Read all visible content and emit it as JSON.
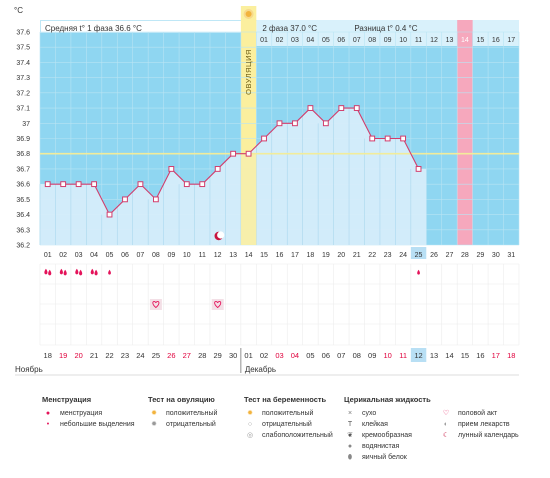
{
  "chart_data": {
    "type": "line",
    "ylabel": "°C",
    "ylim": [
      36.2,
      37.6
    ],
    "yticks": [
      "37.6",
      "37.5",
      "37.4",
      "37.3",
      "37.2",
      "37.1",
      "37",
      "36.9",
      "36.8",
      "36.7",
      "36.6",
      "36.5",
      "36.4",
      "36.3",
      "36.2"
    ],
    "header": {
      "phase1": "Средняя t° 1 фаза 36.6 °C",
      "phase2": "2 фаза 37.0 °C",
      "diff": "Разница t° 0.4 °C"
    },
    "ovulation_label": "ОВУЛЯЦИЯ",
    "cycle_days": [
      "01",
      "02",
      "03",
      "04",
      "05",
      "06",
      "07",
      "08",
      "09",
      "10",
      "11",
      "12",
      "13",
      "14",
      "15",
      "16",
      "17",
      "18",
      "19",
      "20",
      "21",
      "22",
      "23",
      "24",
      "25",
      "26",
      "27",
      "28",
      "29",
      "30",
      "31"
    ],
    "phase2_days": [
      "01",
      "02",
      "03",
      "04",
      "05",
      "06",
      "07",
      "08",
      "09",
      "10",
      "11",
      "12",
      "13",
      "14",
      "15",
      "16",
      "17"
    ],
    "series": [
      {
        "values": [
          36.6,
          36.6,
          36.6,
          36.6,
          36.4,
          36.5,
          36.6,
          36.5,
          36.7,
          36.6,
          36.6,
          36.7,
          36.8,
          36.8,
          36.9,
          37.0,
          37.0,
          37.1,
          37.0,
          37.1,
          37.1,
          36.9,
          36.9,
          36.9,
          36.7,
          null,
          null,
          null,
          null,
          null,
          null
        ]
      }
    ],
    "coverline": 36.8,
    "ovulation_day": "14",
    "expected_period_day": "28",
    "today_day": "25",
    "dates": [
      "18",
      "19",
      "20",
      "21",
      "22",
      "23",
      "24",
      "25",
      "26",
      "27",
      "28",
      "29",
      "30",
      "01",
      "02",
      "03",
      "04",
      "05",
      "06",
      "07",
      "08",
      "09",
      "10",
      "11",
      "12",
      "13",
      "14",
      "15",
      "16",
      "17",
      "18"
    ],
    "weekend_indices": [
      1,
      2,
      8,
      9,
      15,
      16,
      22,
      23,
      29,
      30
    ],
    "month_labels": [
      "Ноябрь",
      "Декабрь"
    ],
    "events": {
      "menstruation_days": [
        "01",
        "02",
        "03",
        "04"
      ],
      "spotting_days": [
        "05",
        "25"
      ],
      "intercourse_days": [
        "08",
        "12"
      ],
      "lunar_day": "12"
    },
    "colors": {
      "chart_bg": "#8fd6f1",
      "fill": "#d8eefb",
      "line": "#d23d6c",
      "ovulation": "#fbef9e",
      "period": "#f6a8bd",
      "coverline": "#f2ec9a",
      "today": "#b8dff4",
      "weekend": "#e0003c"
    }
  },
  "legend": [
    {
      "title": "Менструация",
      "items": [
        {
          "icon": "drop-big-icon",
          "label": "менструация"
        },
        {
          "icon": "drop-small-icon",
          "label": "небольшие выделения"
        }
      ]
    },
    {
      "title": "Тест на овуляцию",
      "items": [
        {
          "icon": "sun-positive-icon",
          "label": "положительный"
        },
        {
          "icon": "sun-negative-icon",
          "label": "отрицательный"
        }
      ]
    },
    {
      "title": "Тест на беременность",
      "items": [
        {
          "icon": "sun-positive-icon",
          "label": "положительный"
        },
        {
          "icon": "circle-negative-icon",
          "label": "отрицательный"
        },
        {
          "icon": "circle-weak-icon",
          "label": "слабоположительный"
        }
      ]
    },
    {
      "title": "Церикальная жидкость",
      "items": [
        {
          "icon": "cross-icon",
          "label": "сухо"
        },
        {
          "icon": "t-icon",
          "label": "клейкая"
        },
        {
          "icon": "swirl-icon",
          "label": "кремообразная"
        },
        {
          "icon": "drop-grey-icon",
          "label": "водянистая"
        },
        {
          "icon": "egg-icon",
          "label": "яичный белок"
        }
      ]
    },
    {
      "title": "",
      "items": [
        {
          "icon": "heart-icon",
          "label": "половой акт"
        },
        {
          "icon": "pill-icon",
          "label": "прием лекарств"
        },
        {
          "icon": "moon-icon",
          "label": "лунный календарь"
        }
      ]
    }
  ]
}
